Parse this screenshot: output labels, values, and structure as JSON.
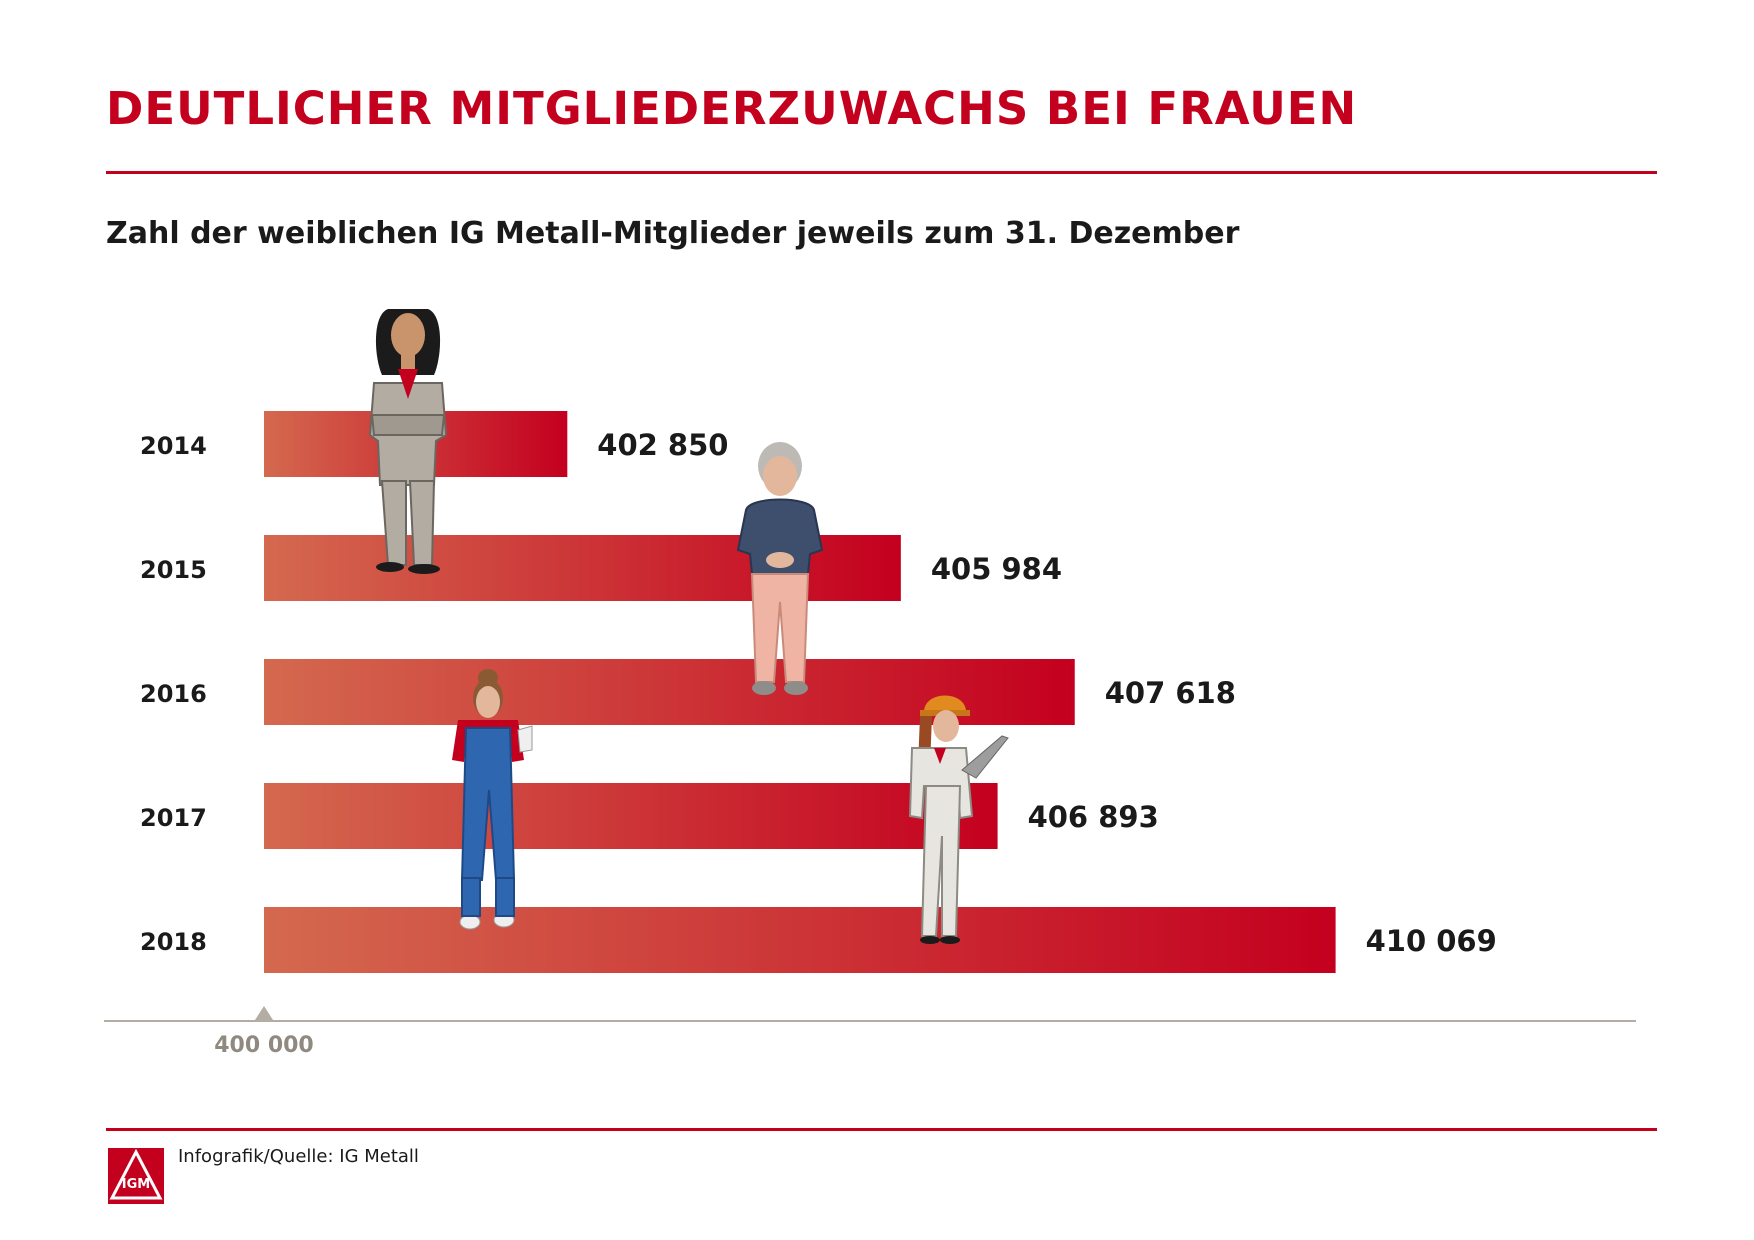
{
  "header": {
    "title": "DEUTLICHER MITGLIEDERZUWACHS BEI FRAUEN",
    "subtitle": "Zahl der weiblichen IG Metall-Mitglieder jeweils zum 31. Dezember"
  },
  "footer": {
    "source": "Infografik/Quelle: IG Metall",
    "logo_text": "IGM",
    "logo_icon": "ig-metall-logo"
  },
  "colors": {
    "brand_red": "#c4001f",
    "bar_start": "#d4694f",
    "bar_end": "#c4001f",
    "axis": "#b3ada3",
    "axis_label": "#8f897f"
  },
  "illustrations": [
    "woman-business-suit-icon",
    "older-woman-icon",
    "woman-overalls-icon",
    "woman-hard-hat-laptop-icon"
  ],
  "chart_data": {
    "type": "bar",
    "orientation": "horizontal",
    "categories": [
      "2014",
      "2015",
      "2016",
      "2017",
      "2018"
    ],
    "values": [
      402850,
      405984,
      407618,
      406893,
      410069
    ],
    "value_labels": [
      "402 850",
      "405 984",
      "407 618",
      "406 893",
      "410 069"
    ],
    "xlim": [
      400000,
      411050
    ],
    "x_tick_labels": [
      "400 000"
    ],
    "grid": false,
    "legend": "none"
  }
}
